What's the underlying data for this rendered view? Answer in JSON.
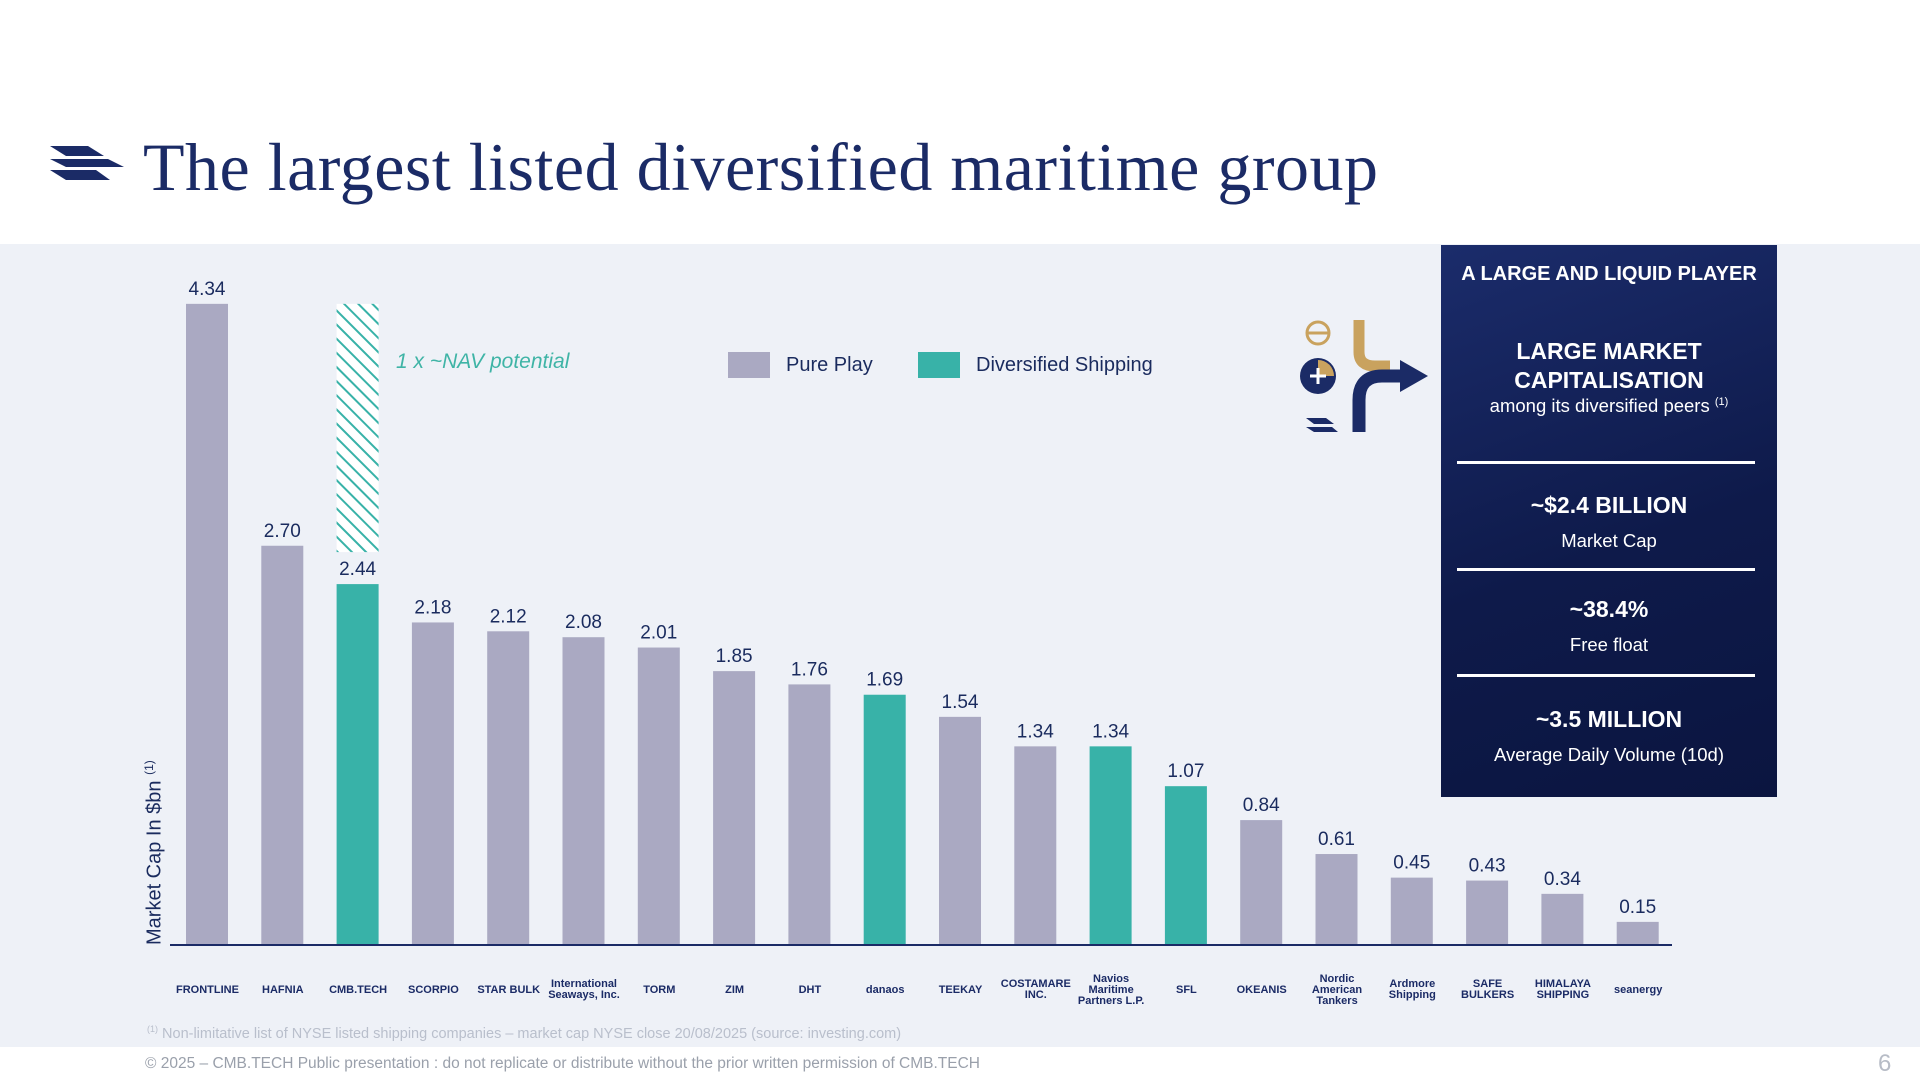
{
  "title": "The largest listed diversified maritime group",
  "chart_data": {
    "type": "bar",
    "ylabel": "Market Cap In $bn",
    "ylabel_sup": "(1)",
    "categories": [
      "FRONTLINE",
      "HAFNIA",
      "CMB.TECH",
      "SCORPIO",
      "STAR BULK",
      "International Seaways",
      "TORM",
      "ZIM",
      "DHT",
      "danaos",
      "TEEKAY",
      "COSTAMARE",
      "Navios Maritime Partners",
      "SFL",
      "OKEANIS",
      "Nordic American Tankers",
      "Ardmore Shipping",
      "SAFE BULKERS",
      "HIMALAYA SHIPPING",
      "seanergy"
    ],
    "values": [
      4.34,
      2.7,
      2.44,
      2.18,
      2.12,
      2.08,
      2.01,
      1.85,
      1.76,
      1.69,
      1.54,
      1.34,
      1.34,
      1.07,
      0.84,
      0.61,
      0.45,
      0.43,
      0.34,
      0.15
    ],
    "value_labels": [
      "4.34",
      "2.70",
      "2.44",
      "2.18",
      "2.12",
      "2.08",
      "2.01",
      "1.85",
      "1.76",
      "1.69",
      "1.54",
      "1.34",
      "1.34",
      "1.07",
      "0.84",
      "0.61",
      "0.45",
      "0.43",
      "0.34",
      "0.15"
    ],
    "groups": [
      "pure",
      "pure",
      "diversified",
      "pure",
      "pure",
      "pure",
      "pure",
      "pure",
      "pure",
      "diversified",
      "pure",
      "pure",
      "diversified",
      "diversified",
      "pure",
      "pure",
      "pure",
      "pure",
      "pure",
      "pure"
    ],
    "nav_potential": {
      "category": "CMB.TECH",
      "value": 4.34
    },
    "ylim": [
      0,
      4.5
    ],
    "legend": [
      {
        "name": "Pure Play",
        "color": "#aaa9c2"
      },
      {
        "name": "Diversified Shipping",
        "color": "#38b2a8"
      }
    ],
    "legend_placement": "top-center",
    "annotation": "1 x ~NAV potential",
    "grid": false
  },
  "colors": {
    "pure": "#aaa9c2",
    "diversified": "#38b2a8",
    "navy": "#1b2b66",
    "background": "#eef1f7",
    "gold": "#c9a25e"
  },
  "sidebox": {
    "heading": "A LARGE AND LIQUID PLAYER",
    "cap_title_1": "LARGE MARKET",
    "cap_title_2": "CAPITALISATION",
    "cap_sub": "among its diversified peers",
    "cap_sup": "(1)",
    "stat1_value": "~$2.4 BILLION",
    "stat1_label": "Market Cap",
    "stat2_value": "~38.4%",
    "stat2_label": "Free float",
    "stat3_value": "~3.5 MILLION",
    "stat3_label": "Average Daily Volume (10d)"
  },
  "logos": [
    "FRONTLINE",
    "HAFNIA",
    "CMB.TECH",
    "SCORPIO",
    "STAR BULK",
    "International Seaways, Inc.",
    "TORM",
    "ZIM",
    "DHT",
    "danaos",
    "TEEKAY",
    "COSTAMARE INC.",
    "Navios Maritime Partners L.P.",
    "SFL",
    "OKEANIS",
    "Nordic American Tankers",
    "Ardmore Shipping",
    "SAFE BULKERS",
    "HIMALAYA SHIPPING",
    "seanergy"
  ],
  "footnote": "Non-limitative list of NYSE listed shipping companies – market cap NYSE close 20/08/2025 (source: investing.com)",
  "footnote_sup": "(1)",
  "copyright": "© 2025 – CMB.TECH Public presentation : do not replicate or distribute without the prior written permission of CMB.TECH",
  "page_number": "6"
}
